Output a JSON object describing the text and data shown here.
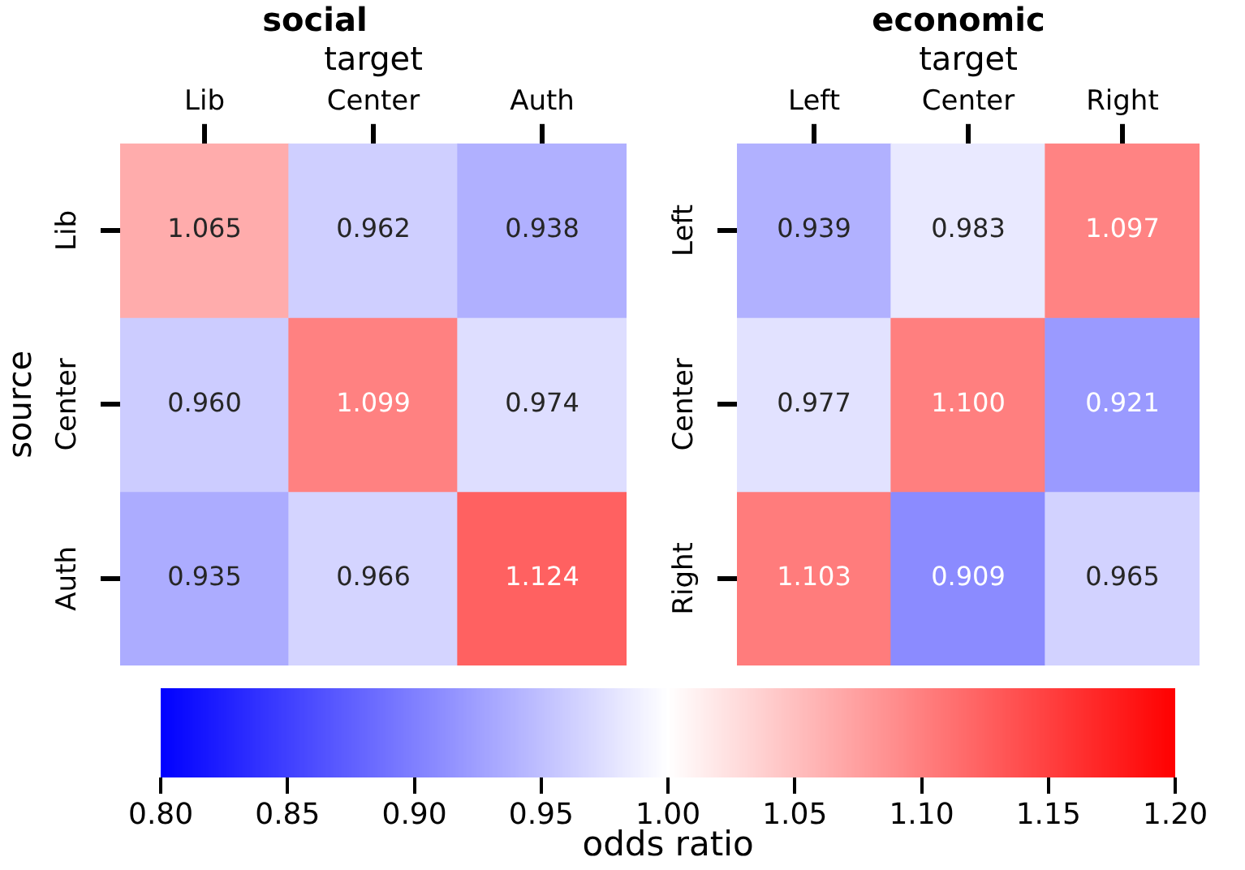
{
  "chart_data": [
    {
      "type": "heatmap",
      "title": "social",
      "xlabel": "target",
      "ylabel": "source",
      "categories": [
        "Lib",
        "Center",
        "Auth"
      ],
      "y_categories": [
        "Lib",
        "Center",
        "Auth"
      ],
      "cells": [
        [
          1.065,
          0.962,
          0.938
        ],
        [
          0.96,
          1.099,
          0.974
        ],
        [
          0.935,
          0.966,
          1.124
        ]
      ],
      "data_labels": true,
      "cell_labels": [
        [
          "1.065",
          "0.962",
          "0.938"
        ],
        [
          "0.960",
          "1.099",
          "0.974"
        ],
        [
          "0.935",
          "0.966",
          "1.124"
        ]
      ],
      "clim": [
        0.8,
        1.2
      ],
      "cticks": [
        {
          "value": 0.8,
          "label": "0.80"
        },
        0.85,
        {
          "value": 0.9,
          "label": "0.90"
        },
        0.95,
        {
          "value": 1.0,
          "label": "1.00"
        },
        1.05,
        {
          "value": 1.1,
          "label": "1.10"
        },
        1.15,
        {
          "value": 1.2,
          "label": "1.20"
        }
      ],
      "clabel": "odds ratio"
    },
    {
      "type": "heatmap",
      "title": "economic",
      "xlabel": "target",
      "categories": [
        "Left",
        "Center",
        "Right"
      ],
      "y_categories": [
        "Left",
        "Center",
        "Right"
      ],
      "cells": [
        [
          0.939,
          0.983,
          1.097
        ],
        [
          0.977,
          1.1,
          0.921
        ],
        [
          1.103,
          0.909,
          0.965
        ]
      ],
      "data_labels": true,
      "cell_labels": [
        [
          "0.939",
          "0.983",
          "1.097"
        ],
        [
          "0.977",
          "1.100",
          "0.921"
        ],
        [
          "1.103",
          "0.909",
          "0.965"
        ]
      ]
    }
  ]
}
